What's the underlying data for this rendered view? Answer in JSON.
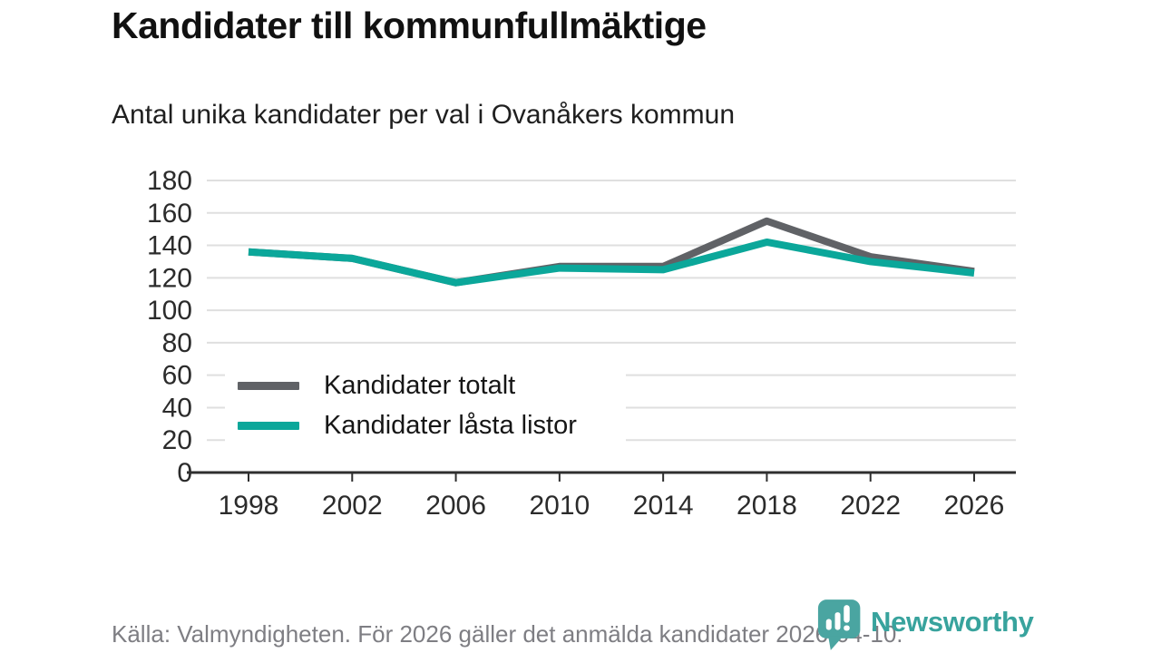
{
  "chart_data": {
    "type": "line",
    "title": "Kandidater till kommunfullmäktige",
    "subtitle": "Antal unika kandidater per val i Ovanåkers kommun",
    "xlabel": "",
    "ylabel": "",
    "x": [
      1998,
      2002,
      2006,
      2010,
      2014,
      2018,
      2022,
      2026
    ],
    "series": [
      {
        "name": "Kandidater totalt",
        "color": "#606266",
        "values": [
          136,
          132,
          117,
          127,
          127,
          155,
          133,
          124
        ]
      },
      {
        "name": "Kandidater låsta listor",
        "color": "#0ba79a",
        "values": [
          136,
          132,
          117,
          126,
          125,
          142,
          130,
          123
        ]
      }
    ],
    "ylim": [
      0,
      180
    ],
    "yticks": [
      0,
      20,
      40,
      60,
      80,
      100,
      120,
      140,
      160,
      180
    ],
    "grid": "horizontal",
    "legend_position": "inside-lower-left"
  },
  "footer": {
    "source": "Källa: Valmyndigheten. För 2026 gäller det anmälda kandidater 2026-04-10.",
    "brand": "Newsworthy"
  },
  "colors": {
    "grid": "#dfdfdf",
    "axis": "#2f2f2f",
    "tick_text": "#2b2b2b",
    "logo_teal": "#4aa5a1",
    "wordmark_teal": "#38a39d"
  }
}
